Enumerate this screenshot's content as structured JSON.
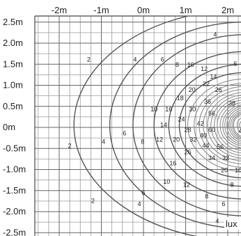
{
  "chart_data": {
    "type": "contour",
    "x_axis": {
      "unit": "m",
      "tick_labels": [
        "-2m",
        "-1m",
        "0m",
        "1m",
        "2m"
      ],
      "tick_values": [
        -2,
        -1,
        0,
        1,
        2
      ],
      "range": [
        -2.5,
        2.4
      ]
    },
    "y_axis": {
      "unit": "m",
      "tick_labels": [
        "2.5m",
        "2.0m",
        "1.5m",
        "1.0m",
        "0.5m",
        "0m",
        "-0.5m",
        "-1.0m",
        "-1.5m",
        "-2.0m",
        "-2.5m"
      ],
      "tick_values": [
        2.5,
        2.0,
        1.5,
        1.0,
        0.5,
        0,
        -0.5,
        -1.0,
        -1.5,
        -2.0,
        -2.5
      ],
      "range": [
        -2.6,
        2.6
      ]
    },
    "unit_label": "lux",
    "grid": true,
    "source_center": {
      "x": 2.4,
      "y": 0.05
    },
    "isolines": [
      {
        "value": 2,
        "rx": 4.05,
        "ry": 2.75
      },
      {
        "value": 4,
        "rx": 3.2,
        "ry": 2.45
      },
      {
        "value": 6,
        "rx": 2.65,
        "ry": 2.15
      },
      {
        "value": 8,
        "rx": 2.15,
        "ry": 1.75
      },
      {
        "value": 10,
        "rx": 1.8,
        "ry": 1.45
      },
      {
        "value": 12,
        "rx": 1.55,
        "ry": 1.25
      },
      {
        "value": 14,
        "rx": 1.35,
        "ry": 1.1
      },
      {
        "value": 16,
        "rx": 1.2,
        "ry": 1.0
      },
      {
        "value": 18,
        "rx": 1.08,
        "ry": 0.92
      },
      {
        "value": 20,
        "rx": 0.98,
        "ry": 0.85
      },
      {
        "value": 22,
        "rx": 0.88,
        "ry": 0.78
      },
      {
        "value": 24,
        "rx": 0.8,
        "ry": 0.72
      },
      {
        "value": 26,
        "rx": 0.72,
        "ry": 0.66
      },
      {
        "value": 28,
        "rx": 0.65,
        "ry": 0.6
      },
      {
        "value": 30,
        "rx": 0.58,
        "ry": 0.54
      },
      {
        "value": 32,
        "rx": 0.52,
        "ry": 0.49
      },
      {
        "value": 34,
        "rx": 0.47,
        "ry": 0.45
      },
      {
        "value": 36,
        "rx": 0.42,
        "ry": 0.41
      },
      {
        "value": 38,
        "rx": 0.37,
        "ry": 0.37
      },
      {
        "value": 40,
        "rx": 0.33,
        "ry": 0.33
      },
      {
        "value": 42,
        "rx": 0.29,
        "ry": 0.3
      },
      {
        "value": 44,
        "rx": 0.26,
        "ry": 0.27
      },
      {
        "value": 56,
        "rx": 0.18,
        "ry": 0.19
      },
      {
        "value": 60,
        "rx": 0.12,
        "ry": 0.13
      }
    ],
    "labels": [
      {
        "text": "4",
        "x": 1.7,
        "y": 2.2
      },
      {
        "text": "2",
        "x": -1.3,
        "y": 1.6
      },
      {
        "text": "4",
        "x": -0.2,
        "y": 1.6
      },
      {
        "text": "6",
        "x": 0.45,
        "y": 1.6
      },
      {
        "text": "8",
        "x": 0.8,
        "y": 1.48
      },
      {
        "text": "10",
        "x": 1.12,
        "y": 1.48
      },
      {
        "text": "12",
        "x": 1.44,
        "y": 1.38
      },
      {
        "text": "6",
        "x": 2.18,
        "y": 1.5
      },
      {
        "text": "14",
        "x": 1.66,
        "y": 1.2
      },
      {
        "text": "22",
        "x": 1.49,
        "y": 1.02
      },
      {
        "text": "20",
        "x": 1.15,
        "y": 0.88
      },
      {
        "text": "26",
        "x": 1.78,
        "y": 0.88
      },
      {
        "text": "18",
        "x": 0.87,
        "y": 0.68
      },
      {
        "text": "36",
        "x": 1.52,
        "y": 0.6
      },
      {
        "text": "38",
        "x": 2.1,
        "y": 0.56
      },
      {
        "text": "10",
        "x": 0.25,
        "y": 0.42
      },
      {
        "text": "16",
        "x": 0.6,
        "y": 0.42
      },
      {
        "text": "30",
        "x": 1.16,
        "y": 0.42
      },
      {
        "text": "56",
        "x": 1.62,
        "y": 0.32
      },
      {
        "text": "24",
        "x": 0.9,
        "y": 0.18
      },
      {
        "text": "42",
        "x": 1.35,
        "y": 0.08
      },
      {
        "text": "14",
        "x": 0.48,
        "y": 0.05
      },
      {
        "text": "28",
        "x": 1.05,
        "y": -0.07
      },
      {
        "text": "60",
        "x": 1.62,
        "y": -0.07
      },
      {
        "text": "4",
        "x": 2.3,
        "y": -0.1
      },
      {
        "text": "6",
        "x": -0.45,
        "y": -0.15
      },
      {
        "text": "40",
        "x": 1.42,
        "y": -0.2
      },
      {
        "text": "12",
        "x": 0.38,
        "y": -0.3
      },
      {
        "text": "20",
        "x": 0.78,
        "y": -0.3
      },
      {
        "text": "32",
        "x": 1.18,
        "y": -0.3
      },
      {
        "text": "4",
        "x": -0.95,
        "y": -0.35
      },
      {
        "text": "8",
        "x": -0.02,
        "y": -0.35
      },
      {
        "text": "44",
        "x": 1.48,
        "y": -0.44
      },
      {
        "text": "56",
        "x": 1.82,
        "y": -0.47
      },
      {
        "text": "2",
        "x": -1.75,
        "y": -0.45
      },
      {
        "text": "26",
        "x": 1.05,
        "y": -0.6
      },
      {
        "text": "34",
        "x": 1.62,
        "y": -0.74
      },
      {
        "text": "32",
        "x": 1.95,
        "y": -0.74
      },
      {
        "text": "16",
        "x": 0.7,
        "y": -0.86
      },
      {
        "text": "20",
        "x": 1.92,
        "y": -1.03
      },
      {
        "text": "10",
        "x": 2.25,
        "y": -1.03
      },
      {
        "text": "10",
        "x": 0.55,
        "y": -1.3
      },
      {
        "text": "12",
        "x": 1.02,
        "y": -1.37
      },
      {
        "text": "8",
        "x": 2.1,
        "y": -1.37
      },
      {
        "text": "6",
        "x": 0.0,
        "y": -1.56
      },
      {
        "text": "8",
        "x": 1.5,
        "y": -1.65
      },
      {
        "text": "2",
        "x": -1.2,
        "y": -1.75
      },
      {
        "text": "4",
        "x": -0.1,
        "y": -1.83
      },
      {
        "text": "6",
        "x": 1.9,
        "y": -1.83
      },
      {
        "text": "4",
        "x": 1.75,
        "y": -2.23
      }
    ]
  }
}
